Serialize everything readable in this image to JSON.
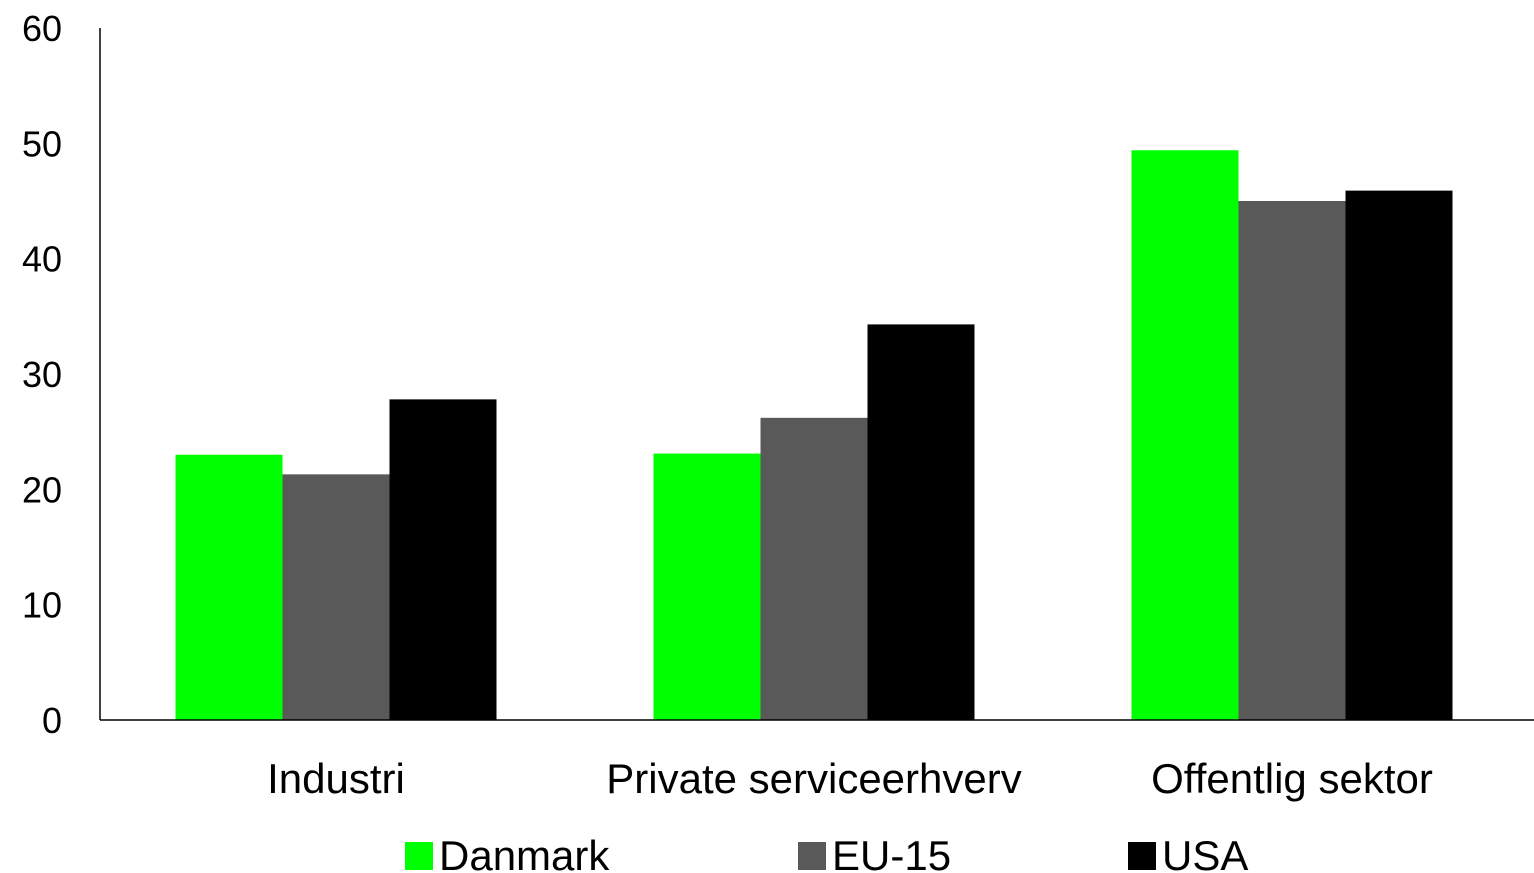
{
  "chart_data": {
    "type": "bar",
    "title": "",
    "xlabel": "",
    "ylabel": "",
    "categories": [
      "Industri",
      "Private serviceerhverv",
      "Offentlig sektor"
    ],
    "series": [
      {
        "name": "Danmark",
        "color": "#00ff00",
        "values": [
          23.0,
          23.1,
          49.4
        ]
      },
      {
        "name": "EU-15",
        "color": "#595959",
        "values": [
          21.3,
          26.2,
          45.0
        ]
      },
      {
        "name": "USA",
        "color": "#000000",
        "values": [
          27.8,
          34.3,
          45.9
        ]
      }
    ],
    "ylim": [
      0,
      60
    ],
    "yticks": [
      "0",
      "10",
      "20",
      "30",
      "40",
      "50",
      "60"
    ],
    "grid": false,
    "legend_position": "bottom"
  }
}
